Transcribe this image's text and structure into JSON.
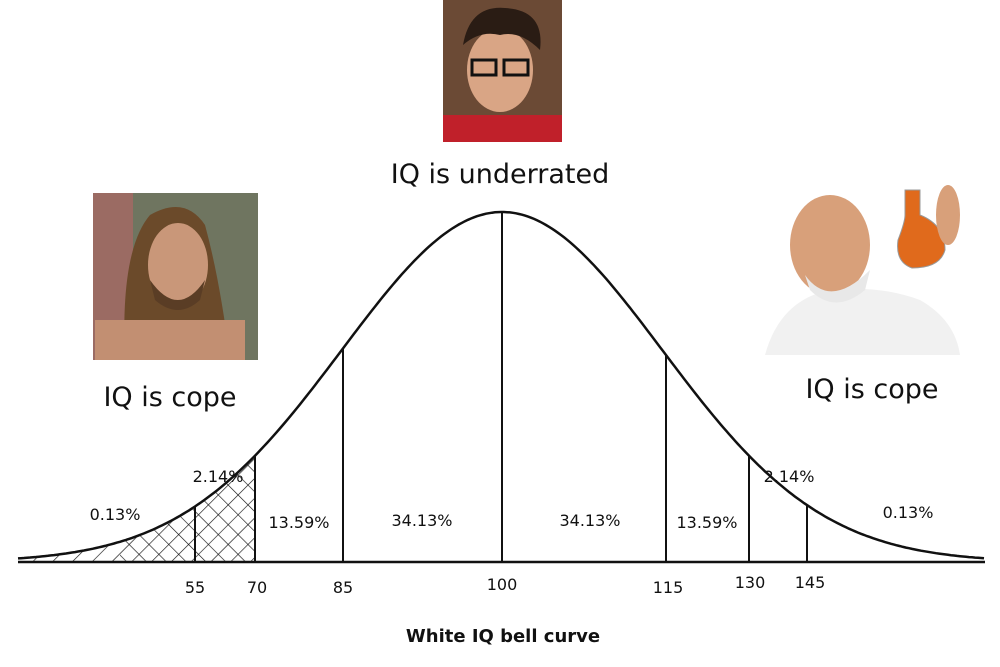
{
  "top_caption": "IQ is underrated",
  "left_caption": "IQ is cope",
  "right_caption": "IQ is cope",
  "segment_labels": [
    "0.13%",
    "2.14%",
    "13.59%",
    "34.13%",
    "34.13%",
    "13.59%",
    "2.14%",
    "0.13%"
  ],
  "axis_labels": [
    "55",
    "70",
    "85",
    "100",
    "115",
    "130",
    "145"
  ],
  "footer": "White IQ bell curve"
}
